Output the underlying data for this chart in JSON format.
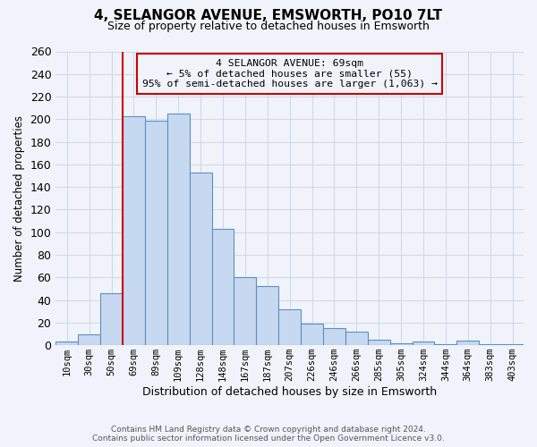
{
  "title": "4, SELANGOR AVENUE, EMSWORTH, PO10 7LT",
  "subtitle": "Size of property relative to detached houses in Emsworth",
  "xlabel": "Distribution of detached houses by size in Emsworth",
  "ylabel": "Number of detached properties",
  "bar_labels": [
    "10sqm",
    "30sqm",
    "50sqm",
    "69sqm",
    "89sqm",
    "109sqm",
    "128sqm",
    "148sqm",
    "167sqm",
    "187sqm",
    "207sqm",
    "226sqm",
    "246sqm",
    "266sqm",
    "285sqm",
    "305sqm",
    "324sqm",
    "344sqm",
    "364sqm",
    "383sqm",
    "403sqm"
  ],
  "bar_values": [
    3,
    10,
    46,
    203,
    199,
    205,
    153,
    103,
    60,
    52,
    32,
    19,
    15,
    12,
    5,
    2,
    3,
    1,
    4,
    1,
    1
  ],
  "bar_color": "#c7d9f0",
  "bar_edge_color": "#5a8fc4",
  "annotation_line1": "4 SELANGOR AVENUE: 69sqm",
  "annotation_line2": "← 5% of detached houses are smaller (55)",
  "annotation_line3": "95% of semi-detached houses are larger (1,063) →",
  "annotation_box_edge_color": "#cc0000",
  "vline_x_index": 3,
  "vline_color": "#cc0000",
  "ylim": [
    0,
    260
  ],
  "yticks": [
    0,
    20,
    40,
    60,
    80,
    100,
    120,
    140,
    160,
    180,
    200,
    220,
    240,
    260
  ],
  "footer_line1": "Contains HM Land Registry data © Crown copyright and database right 2024.",
  "footer_line2": "Contains public sector information licensed under the Open Government Licence v3.0.",
  "bg_color": "#f0f4fa"
}
